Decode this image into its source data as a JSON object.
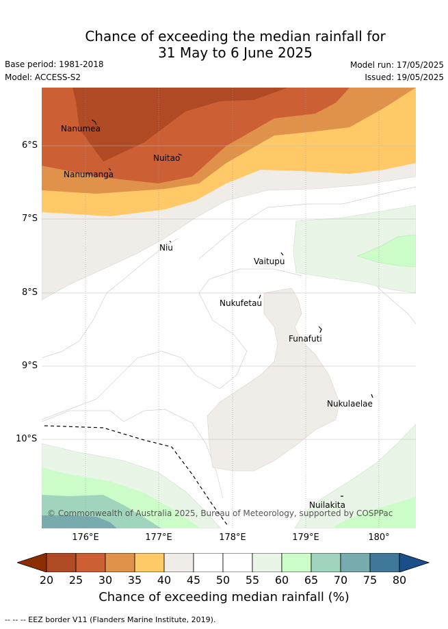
{
  "title_line1": "Chance of exceeding the median rainfall for",
  "title_line2": "31 May to 6 June 2025",
  "base_period": "Base period: 1981-2018",
  "model": "Model: ACCESS-S2",
  "model_run": "Model run: 17/05/2025",
  "issued": "Issued: 19/05/2025",
  "copyright": "© Commonwealth of Australia 2025, Bureau of Meteorology, supported by COSPPac",
  "lat_labels": [
    "6°S",
    "7°S",
    "8°S",
    "9°S",
    "10°S"
  ],
  "lon_labels": [
    "176°E",
    "177°E",
    "178°E",
    "179°E",
    "180°"
  ],
  "places": {
    "nanumea": "Nanumea",
    "nuitao": "Nuitao",
    "nanumanga": "Nanumanga",
    "niu": "Niu",
    "vaitupu": "Vaitupu",
    "nukufetau": "Nukufetau",
    "funafuti": "Funafuti",
    "nukulaelae": "Nukulaelae",
    "nuilakita": "Nuilakita"
  },
  "colorbar": {
    "ticks": [
      "20",
      "25",
      "30",
      "35",
      "40",
      "45",
      "50",
      "55",
      "60",
      "65",
      "70",
      "75",
      "80"
    ],
    "colors": [
      "#8c2d04",
      "#b04a24",
      "#cc5f33",
      "#e0914a",
      "#fec966",
      "#f0ece7",
      "#ffffff",
      "#ffffff",
      "#e9f5e7",
      "#ccfcc8",
      "#a0d4bd",
      "#78abad",
      "#3f7898",
      "#1a4f8a"
    ],
    "label": "Chance of exceeding median rainfall (%)"
  },
  "footer": "-- -- -- EEZ border V11 (Flanders Marine Institute, 2019)."
}
